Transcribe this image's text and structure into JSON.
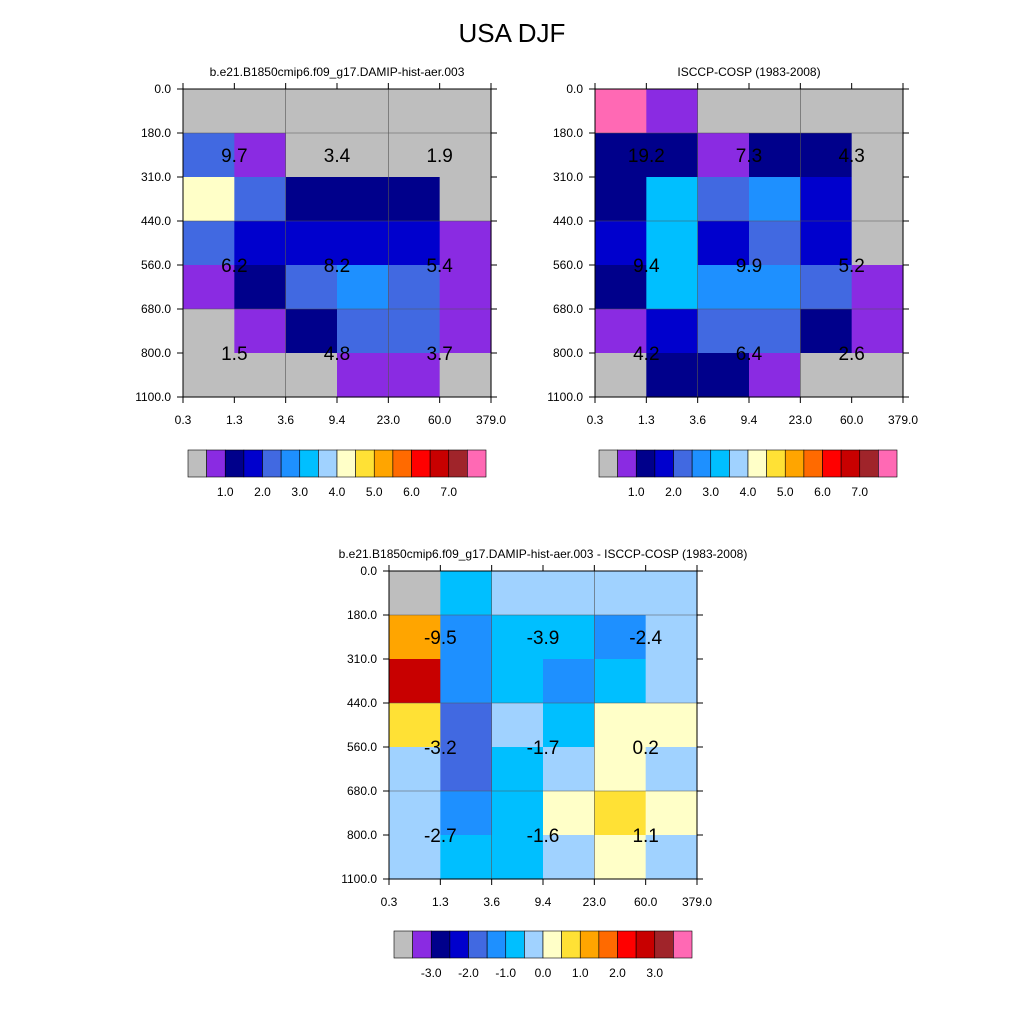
{
  "page": {
    "title": "USA DJF"
  },
  "palette": {
    "abs": [
      "#bebebe",
      "#8a2be2",
      "#00008b",
      "#0000cd",
      "#4169e1",
      "#1e90ff",
      "#00bfff",
      "#a0d2ff",
      "#ffffc8",
      "#ffe135",
      "#ffa500",
      "#ff6a00",
      "#ff0000",
      "#c80000",
      "#a0242a",
      "#ff69b4"
    ],
    "diff": [
      "#bebebe",
      "#8a2be2",
      "#00008b",
      "#0000cd",
      "#4169e1",
      "#1e90ff",
      "#00bfff",
      "#a0d2ff",
      "#ffffc8",
      "#ffe135",
      "#ffa500",
      "#ff6a00",
      "#ff0000",
      "#c80000",
      "#a0242a",
      "#ff69b4"
    ]
  },
  "chart_data": [
    {
      "type": "heatmap",
      "title": "b.e21.B1850cmip6.f09_g17.DAMIP-hist-aer.003",
      "x_ticks": [
        "0.3",
        "1.3",
        "3.6",
        "9.4",
        "23.0",
        "60.0",
        "379.0"
      ],
      "y_ticks": [
        "0.0",
        "180.0",
        "310.0",
        "440.0",
        "560.0",
        "680.0",
        "800.0",
        "1100.0"
      ],
      "color_index_grid": [
        [
          0,
          0,
          0,
          0,
          0,
          0
        ],
        [
          4,
          1,
          0,
          0,
          0,
          0
        ],
        [
          8,
          4,
          2,
          2,
          2,
          0
        ],
        [
          4,
          3,
          3,
          3,
          3,
          1
        ],
        [
          1,
          2,
          4,
          5,
          4,
          1
        ],
        [
          0,
          1,
          2,
          4,
          4,
          1
        ],
        [
          0,
          0,
          0,
          1,
          1,
          0
        ]
      ],
      "cell_labels": [
        {
          "text": "9.7",
          "col_center": 1,
          "row_center": 1.5
        },
        {
          "text": "3.4",
          "col_center": 3,
          "row_center": 1.5
        },
        {
          "text": "1.9",
          "col_center": 5,
          "row_center": 1.5
        },
        {
          "text": "6.2",
          "col_center": 1,
          "row_center": 4
        },
        {
          "text": "8.2",
          "col_center": 3,
          "row_center": 4
        },
        {
          "text": "5.4",
          "col_center": 5,
          "row_center": 4
        },
        {
          "text": "1.5",
          "col_center": 1,
          "row_center": 6
        },
        {
          "text": "4.8",
          "col_center": 3,
          "row_center": 6
        },
        {
          "text": "3.7",
          "col_center": 5,
          "row_center": 6
        }
      ],
      "colorbar_labels": [
        "1.0",
        "2.0",
        "3.0",
        "4.0",
        "5.0",
        "6.0",
        "7.0"
      ]
    },
    {
      "type": "heatmap",
      "title": "ISCCP-COSP (1983-2008)",
      "x_ticks": [
        "0.3",
        "1.3",
        "3.6",
        "9.4",
        "23.0",
        "60.0",
        "379.0"
      ],
      "y_ticks": [
        "0.0",
        "180.0",
        "310.0",
        "440.0",
        "560.0",
        "680.0",
        "800.0",
        "1100.0"
      ],
      "color_index_grid": [
        [
          15,
          1,
          0,
          0,
          0,
          0
        ],
        [
          2,
          2,
          1,
          2,
          2,
          0
        ],
        [
          2,
          6,
          4,
          5,
          3,
          0
        ],
        [
          3,
          6,
          3,
          4,
          3,
          0
        ],
        [
          2,
          6,
          5,
          5,
          4,
          1
        ],
        [
          1,
          3,
          4,
          4,
          2,
          1
        ],
        [
          0,
          2,
          2,
          1,
          0,
          0
        ]
      ],
      "cell_labels": [
        {
          "text": "19.2",
          "col_center": 1,
          "row_center": 1.5
        },
        {
          "text": "7.3",
          "col_center": 3,
          "row_center": 1.5
        },
        {
          "text": "4.3",
          "col_center": 5,
          "row_center": 1.5
        },
        {
          "text": "9.4",
          "col_center": 1,
          "row_center": 4
        },
        {
          "text": "9.9",
          "col_center": 3,
          "row_center": 4
        },
        {
          "text": "5.2",
          "col_center": 5,
          "row_center": 4
        },
        {
          "text": "4.2",
          "col_center": 1,
          "row_center": 6
        },
        {
          "text": "6.4",
          "col_center": 3,
          "row_center": 6
        },
        {
          "text": "2.6",
          "col_center": 5,
          "row_center": 6
        }
      ],
      "colorbar_labels": [
        "1.0",
        "2.0",
        "3.0",
        "4.0",
        "5.0",
        "6.0",
        "7.0"
      ]
    },
    {
      "type": "heatmap",
      "title": "b.e21.B1850cmip6.f09_g17.DAMIP-hist-aer.003 - ISCCP-COSP (1983-2008)",
      "x_ticks": [
        "0.3",
        "1.3",
        "3.6",
        "9.4",
        "23.0",
        "60.0",
        "379.0"
      ],
      "y_ticks": [
        "0.0",
        "180.0",
        "310.0",
        "440.0",
        "560.0",
        "680.0",
        "800.0",
        "1100.0"
      ],
      "color_index_grid": [
        [
          0,
          6,
          7,
          7,
          7,
          7
        ],
        [
          10,
          5,
          6,
          6,
          5,
          7
        ],
        [
          13,
          5,
          6,
          5,
          6,
          7
        ],
        [
          9,
          4,
          7,
          6,
          8,
          8
        ],
        [
          7,
          4,
          6,
          7,
          8,
          7
        ],
        [
          7,
          5,
          6,
          8,
          9,
          8
        ],
        [
          7,
          6,
          6,
          7,
          8,
          7
        ]
      ],
      "cell_labels": [
        {
          "text": "-9.5",
          "col_center": 1,
          "row_center": 1.5
        },
        {
          "text": "-3.9",
          "col_center": 3,
          "row_center": 1.5
        },
        {
          "text": "-2.4",
          "col_center": 5,
          "row_center": 1.5
        },
        {
          "text": "-3.2",
          "col_center": 1,
          "row_center": 4
        },
        {
          "text": "-1.7",
          "col_center": 3,
          "row_center": 4
        },
        {
          "text": "0.2",
          "col_center": 5,
          "row_center": 4
        },
        {
          "text": "-2.7",
          "col_center": 1,
          "row_center": 6
        },
        {
          "text": "-1.6",
          "col_center": 3,
          "row_center": 6
        },
        {
          "text": "1.1",
          "col_center": 5,
          "row_center": 6
        }
      ],
      "colorbar_labels": [
        "-3.0",
        "-2.0",
        "-1.0",
        "0.0",
        "1.0",
        "2.0",
        "3.0"
      ]
    }
  ]
}
